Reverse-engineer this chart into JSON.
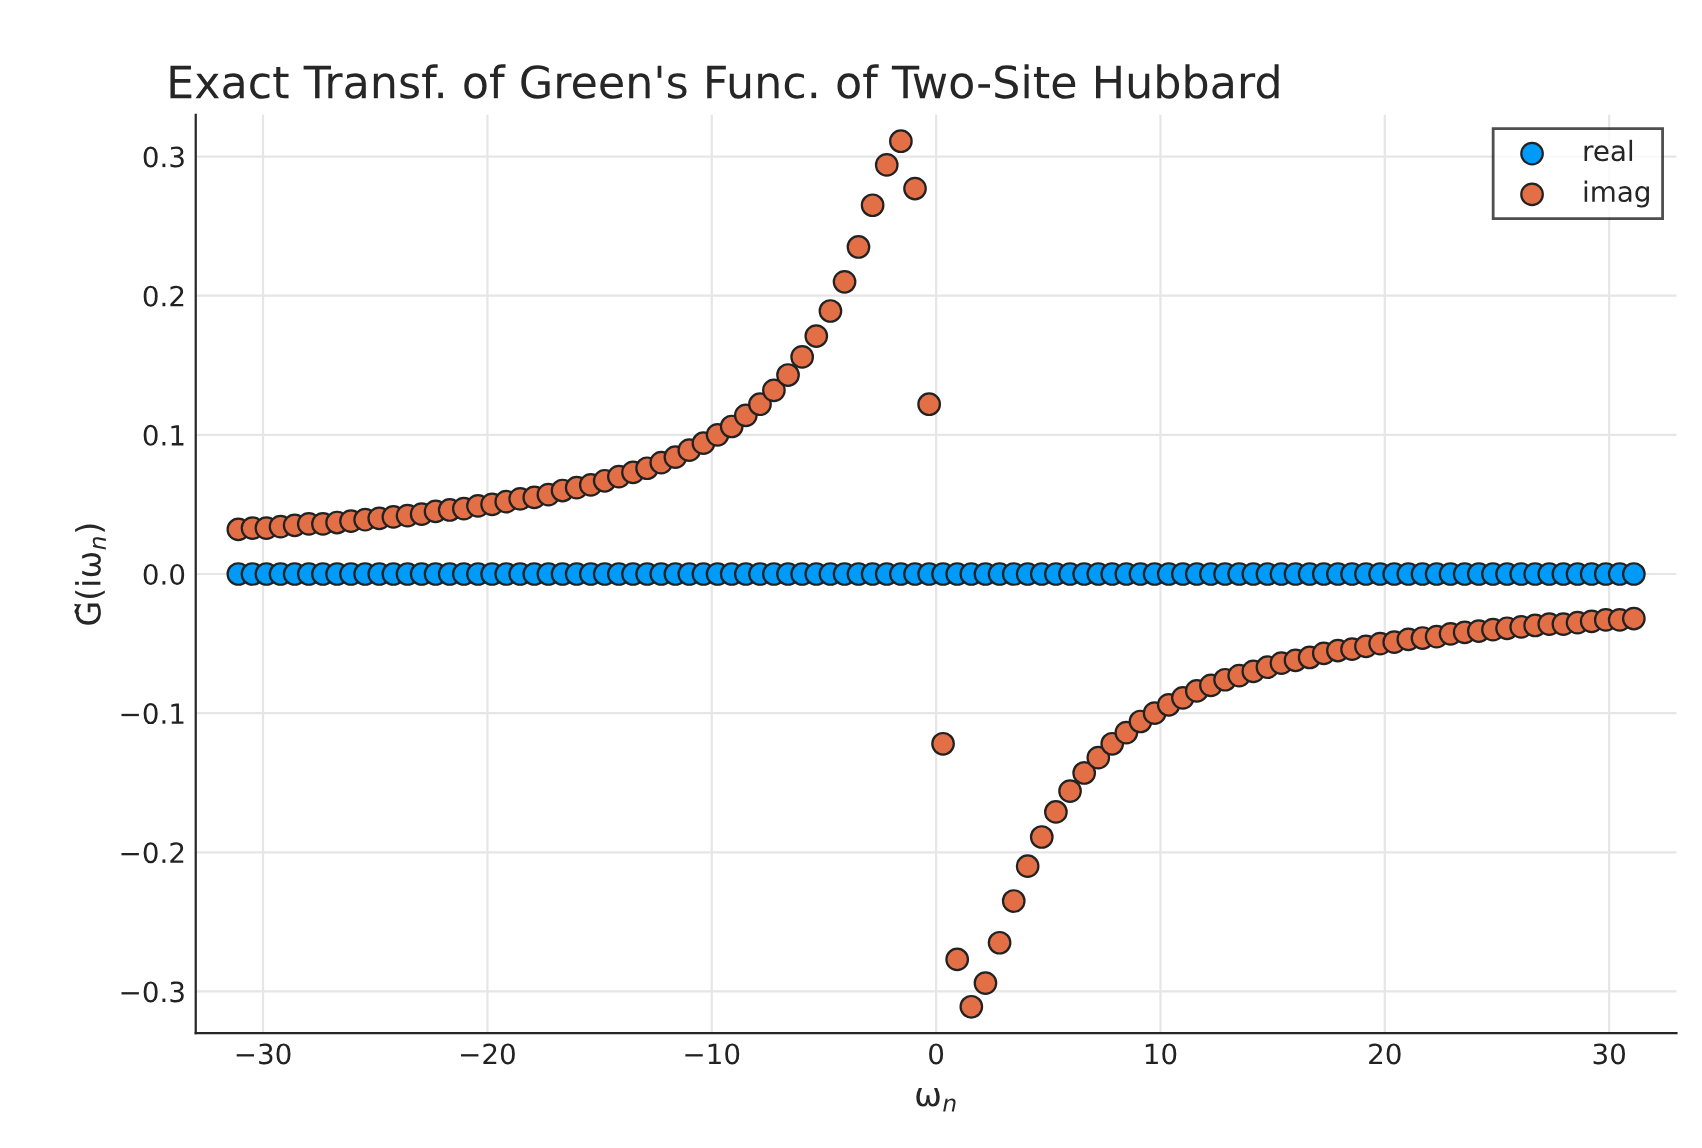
{
  "chart_data": {
    "type": "scatter",
    "title": "Exact Transf. of Green's Func. of Two-Site Hubbard",
    "xlabel": "ω$_{n}$",
    "ylabel": "G̃(iω$_{n}$)",
    "x": [
      -31.1,
      -30.47,
      -29.85,
      -29.22,
      -28.59,
      -27.96,
      -27.33,
      -26.7,
      -26.08,
      -25.45,
      -24.82,
      -24.19,
      -23.56,
      -22.93,
      -22.31,
      -21.68,
      -21.05,
      -20.42,
      -19.79,
      -19.16,
      -18.54,
      -17.91,
      -17.28,
      -16.65,
      -16.02,
      -15.39,
      -14.77,
      -14.14,
      -13.51,
      -12.88,
      -12.25,
      -11.62,
      -11.0,
      -10.37,
      -9.74,
      -9.11,
      -8.48,
      -7.85,
      -7.23,
      -6.6,
      -5.97,
      -5.34,
      -4.71,
      -4.08,
      -3.46,
      -2.83,
      -2.2,
      -1.57,
      -0.94,
      -0.31,
      0.31,
      0.94,
      1.57,
      2.2,
      2.83,
      3.46,
      4.08,
      4.71,
      5.34,
      5.97,
      6.6,
      7.23,
      7.85,
      8.48,
      9.11,
      9.74,
      10.37,
      11.0,
      11.62,
      12.25,
      12.88,
      13.51,
      14.14,
      14.77,
      15.39,
      16.02,
      16.65,
      17.28,
      17.91,
      18.54,
      19.16,
      19.79,
      20.42,
      21.05,
      21.68,
      22.31,
      22.93,
      23.56,
      24.19,
      24.82,
      25.45,
      26.08,
      26.7,
      27.33,
      27.96,
      28.59,
      29.22,
      29.85,
      30.47,
      31.1
    ],
    "series": [
      {
        "name": "real",
        "color": "#009af9",
        "values": [
          0,
          0,
          0,
          0,
          0,
          0,
          0,
          0,
          0,
          0,
          0,
          0,
          0,
          0,
          0,
          0,
          0,
          0,
          0,
          0,
          0,
          0,
          0,
          0,
          0,
          0,
          0,
          0,
          0,
          0,
          0,
          0,
          0,
          0,
          0,
          0,
          0,
          0,
          0,
          0,
          0,
          0,
          0,
          0,
          0,
          0,
          0,
          0,
          0,
          0,
          0,
          0,
          0,
          0,
          0,
          0,
          0,
          0,
          0,
          0,
          0,
          0,
          0,
          0,
          0,
          0,
          0,
          0,
          0,
          0,
          0,
          0,
          0,
          0,
          0,
          0,
          0,
          0,
          0,
          0,
          0,
          0,
          0,
          0,
          0,
          0,
          0,
          0,
          0,
          0,
          0,
          0,
          0,
          0,
          0,
          0,
          0,
          0,
          0,
          0
        ]
      },
      {
        "name": "imag",
        "color": "#e26f46",
        "values": [
          0.032,
          0.033,
          0.033,
          0.034,
          0.035,
          0.036,
          0.036,
          0.037,
          0.038,
          0.039,
          0.04,
          0.041,
          0.042,
          0.043,
          0.045,
          0.046,
          0.047,
          0.049,
          0.05,
          0.052,
          0.054,
          0.055,
          0.057,
          0.06,
          0.062,
          0.064,
          0.067,
          0.07,
          0.073,
          0.076,
          0.08,
          0.084,
          0.089,
          0.094,
          0.1,
          0.106,
          0.114,
          0.122,
          0.132,
          0.143,
          0.156,
          0.171,
          0.189,
          0.21,
          0.235,
          0.265,
          0.294,
          0.311,
          0.277,
          0.122,
          -0.122,
          -0.277,
          -0.311,
          -0.294,
          -0.265,
          -0.235,
          -0.21,
          -0.189,
          -0.171,
          -0.156,
          -0.143,
          -0.132,
          -0.122,
          -0.114,
          -0.106,
          -0.1,
          -0.094,
          -0.089,
          -0.084,
          -0.08,
          -0.076,
          -0.073,
          -0.07,
          -0.067,
          -0.064,
          -0.062,
          -0.06,
          -0.057,
          -0.055,
          -0.054,
          -0.052,
          -0.05,
          -0.049,
          -0.047,
          -0.046,
          -0.045,
          -0.043,
          -0.042,
          -0.041,
          -0.04,
          -0.039,
          -0.038,
          -0.037,
          -0.036,
          -0.036,
          -0.035,
          -0.034,
          -0.033,
          -0.033,
          -0.032
        ]
      }
    ],
    "xlim": [
      -33,
      33
    ],
    "ylim": [
      -0.33,
      0.33
    ],
    "xticks": [
      {
        "value": -30,
        "label": "−30"
      },
      {
        "value": -20,
        "label": "−20"
      },
      {
        "value": -10,
        "label": "−10"
      },
      0,
      10,
      20,
      30
    ],
    "yticks": [
      {
        "value": -0.3,
        "label": "−0.3"
      },
      {
        "value": -0.2,
        "label": "−0.2"
      },
      {
        "value": -0.1,
        "label": "−0.1"
      },
      {
        "value": 0,
        "label": "0.0"
      },
      0.1,
      0.2,
      0.3
    ],
    "grid": true,
    "legend": "top right",
    "marker": "circle"
  }
}
